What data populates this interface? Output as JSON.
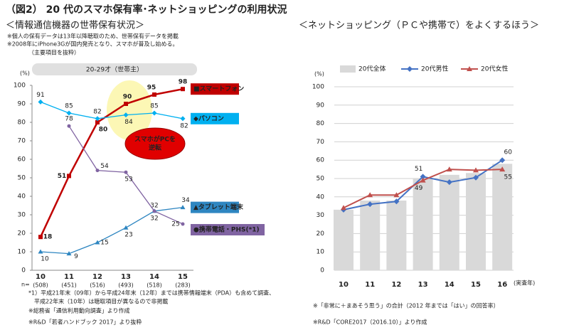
{
  "title": "（図2） 20 代のスマホ保有率･ネットショッピングの利用状況",
  "chart_data": [
    {
      "type": "line",
      "title": "＜情報通信機器の世帯保有状況＞",
      "notes": [
        "※個人の保有データは13年以降聴取のため、世帯保有データを掲載",
        "※2008年にiPhone3Gが国内発売となり、スマホが普及し始める。",
        "（主要項目を抜粋）"
      ],
      "banner": "20-29才（世帯主）",
      "y_label": "(%)",
      "categories": [
        "10",
        "11",
        "12",
        "13",
        "14",
        "15"
      ],
      "n_title": "n=",
      "n_labels": [
        "(508)",
        "(451)",
        "(516)",
        "(493)",
        "(518)",
        "(283)"
      ],
      "ylim": [
        0,
        100
      ],
      "yticks": [
        0,
        10,
        20,
        30,
        40,
        50,
        60,
        70,
        80,
        90,
        100
      ],
      "series": [
        {
          "name": "■スマートフォン",
          "color": "#c00000",
          "marker": "square",
          "values": [
            18,
            51,
            80,
            90,
            95,
            98
          ]
        },
        {
          "name": "◆パソコン",
          "color": "#00b0f0",
          "marker": "diamond",
          "values": [
            91,
            85,
            82,
            84,
            85,
            82
          ]
        },
        {
          "name": "▲タブレット端末",
          "color": "#2e86c1",
          "marker": "triangle",
          "values": [
            10,
            9,
            15,
            23,
            32,
            34
          ]
        },
        {
          "name": "●携帯電話・PHS(*1)",
          "color": "#8064a2",
          "marker": "circle",
          "values": [
            null,
            78,
            54,
            53,
            32,
            25
          ]
        }
      ],
      "annotation": [
        "スマホがPCを",
        "逆転"
      ],
      "footnotes": [
        "*1）平成21年末（09年）から平成24年末（12年）までは携帯情報端末（PDA）も含めて調査、",
        "平成22年末（10年）は聴取項目が異なるので非掲載",
        "※総務省「通信利用動向調査」より作成",
        "※R&D「若者ハンドブック 2017」より抜粋"
      ]
    },
    {
      "type": "combo",
      "title": "＜ネットショッピング（ＰＣや携帯で）をよくするほう＞",
      "y_label": "(%)",
      "x_label": "(実査年)",
      "categories": [
        "10",
        "11",
        "12",
        "13",
        "14",
        "15",
        "16"
      ],
      "ylim": [
        0,
        100
      ],
      "yticks": [
        0,
        10,
        20,
        30,
        40,
        50,
        60,
        70,
        80,
        90,
        100
      ],
      "grid": true,
      "series": [
        {
          "name": "20代全体",
          "color": "#d9d9d9",
          "kind": "bar",
          "values": [
            33,
            38,
            38,
            50,
            52,
            53,
            58
          ]
        },
        {
          "name": "20代男性",
          "color": "#4472c4",
          "kind": "line",
          "marker": "diamond",
          "values": [
            33,
            36,
            37.5,
            51,
            48,
            50.5,
            60
          ],
          "value_labels": [
            null,
            null,
            null,
            "51",
            null,
            null,
            "60"
          ]
        },
        {
          "name": "20代女性",
          "color": "#c0504d",
          "kind": "line",
          "marker": "triangle",
          "values": [
            34,
            41,
            41,
            49,
            55,
            54.5,
            55
          ],
          "value_labels": [
            null,
            null,
            null,
            "49",
            null,
            null,
            "55"
          ]
        }
      ],
      "footnotes": [
        "※「非常に＋まあそう思う」の合計（2012 年までは「はい」の回答率）",
        "※R&D「CORE2017（2016.10）」より作成"
      ]
    }
  ]
}
